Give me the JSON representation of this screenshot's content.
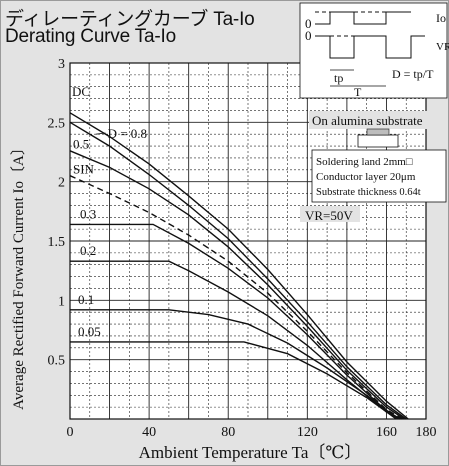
{
  "chart_data": {
    "type": "line",
    "title": "ディレーティングカーブ Ta-Io",
    "subtitle": "Derating Curve Ta-Io",
    "xlabel": "Ambient Temperature   Ta〔℃〕",
    "ylabel": "Average Rectified Forward Current   Io〔A〕",
    "xlim": [
      0,
      180
    ],
    "ylim": [
      0,
      3
    ],
    "x_ticks": [
      0,
      40,
      80,
      120,
      160,
      180
    ],
    "y_ticks": [
      0.5,
      1,
      1.5,
      2,
      2.5,
      3
    ],
    "x_tick_labels": [
      "0",
      "40",
      "80",
      "120",
      "160",
      "180"
    ],
    "y_tick_labels": [
      "0.5",
      "1",
      "1.5",
      "2",
      "2.5",
      "3"
    ],
    "grid": true,
    "series": [
      {
        "name": "DC",
        "style": "solid",
        "points": [
          [
            0,
            2.58
          ],
          [
            20,
            2.38
          ],
          [
            40,
            2.15
          ],
          [
            60,
            1.88
          ],
          [
            80,
            1.6
          ],
          [
            100,
            1.26
          ],
          [
            120,
            0.88
          ],
          [
            140,
            0.48
          ],
          [
            160,
            0.15
          ],
          [
            171,
            0
          ]
        ]
      },
      {
        "name": "D = 0.8",
        "style": "solid",
        "points": [
          [
            0,
            2.5
          ],
          [
            20,
            2.3
          ],
          [
            40,
            2.06
          ],
          [
            60,
            1.8
          ],
          [
            80,
            1.52
          ],
          [
            100,
            1.18
          ],
          [
            120,
            0.82
          ],
          [
            140,
            0.44
          ],
          [
            160,
            0.12
          ],
          [
            170,
            0
          ]
        ]
      },
      {
        "name": "0.5",
        "style": "solid",
        "points": [
          [
            0,
            2.26
          ],
          [
            20,
            2.12
          ],
          [
            40,
            1.94
          ],
          [
            60,
            1.72
          ],
          [
            80,
            1.45
          ],
          [
            100,
            1.13
          ],
          [
            120,
            0.78
          ],
          [
            140,
            0.41
          ],
          [
            160,
            0.1
          ],
          [
            169,
            0
          ]
        ]
      },
      {
        "name": "SIN",
        "style": "dashed",
        "points": [
          [
            0,
            2.05
          ],
          [
            20,
            1.9
          ],
          [
            40,
            1.74
          ],
          [
            60,
            1.55
          ],
          [
            80,
            1.33
          ],
          [
            100,
            1.06
          ],
          [
            120,
            0.74
          ],
          [
            140,
            0.39
          ],
          [
            160,
            0.08
          ],
          [
            168,
            0
          ]
        ]
      },
      {
        "name": "0.3",
        "style": "solid",
        "points": [
          [
            0,
            1.64
          ],
          [
            42,
            1.64
          ],
          [
            60,
            1.48
          ],
          [
            80,
            1.27
          ],
          [
            100,
            1.02
          ],
          [
            120,
            0.71
          ],
          [
            140,
            0.37
          ],
          [
            160,
            0.07
          ],
          [
            167,
            0
          ]
        ]
      },
      {
        "name": "0.2",
        "style": "solid",
        "points": [
          [
            0,
            1.33
          ],
          [
            50,
            1.33
          ],
          [
            60,
            1.25
          ],
          [
            80,
            1.07
          ],
          [
            100,
            0.87
          ],
          [
            120,
            0.62
          ],
          [
            140,
            0.33
          ],
          [
            160,
            0.06
          ],
          [
            167,
            0
          ]
        ]
      },
      {
        "name": "0.1",
        "style": "solid",
        "points": [
          [
            0,
            0.92
          ],
          [
            50,
            0.92
          ],
          [
            70,
            0.88
          ],
          [
            90,
            0.8
          ],
          [
            110,
            0.64
          ],
          [
            130,
            0.43
          ],
          [
            150,
            0.2
          ],
          [
            166,
            0
          ]
        ]
      },
      {
        "name": "0.05",
        "style": "solid",
        "points": [
          [
            0,
            0.65
          ],
          [
            88,
            0.65
          ],
          [
            110,
            0.55
          ],
          [
            130,
            0.38
          ],
          [
            150,
            0.18
          ],
          [
            165,
            0
          ]
        ]
      }
    ],
    "annotations": {
      "vr": "VR=50V",
      "substrate": "On alumina substrate",
      "land": "Soldering land 2mm□",
      "conductor": "Conductor layer 20μm",
      "thickness": "Substrate thickness 0.64t"
    },
    "waveform": {
      "io_label": "Io",
      "vr_label": "VR",
      "zero_top": "0",
      "zero_bottom": "0",
      "tp_label": "tp",
      "t_label": "T",
      "duty_label": "D = tp/T"
    }
  }
}
